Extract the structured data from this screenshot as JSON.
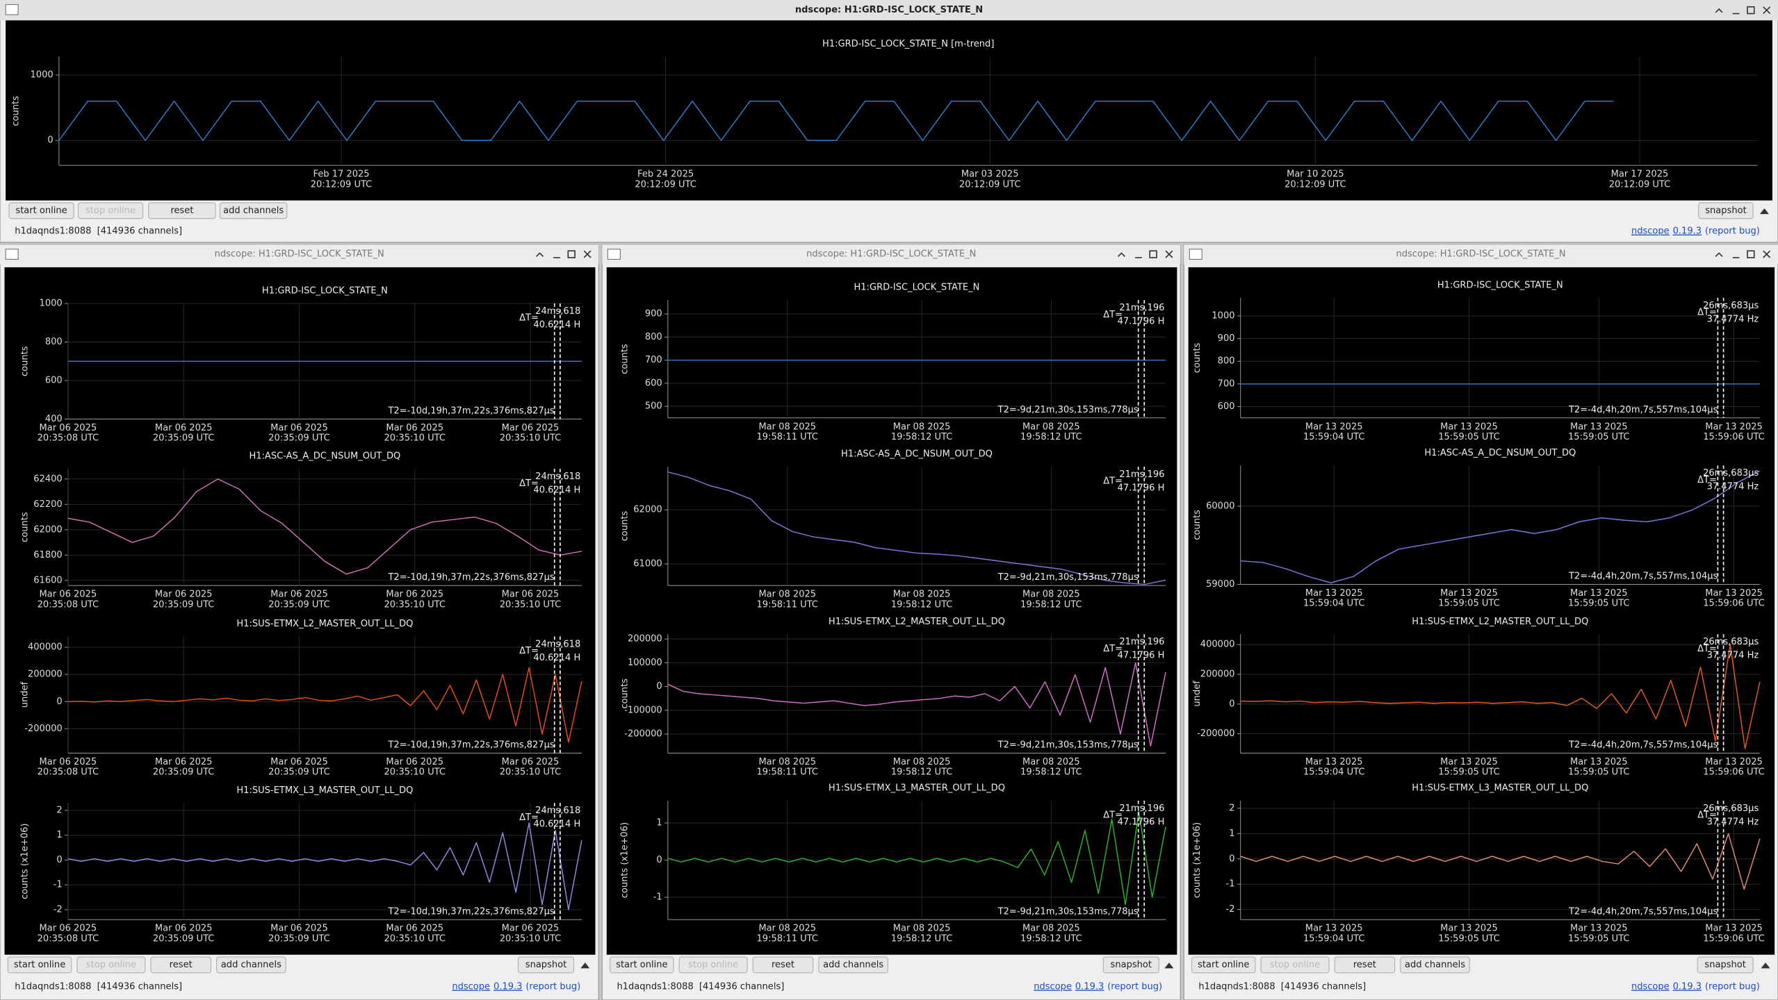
{
  "windows": [
    {
      "title": "ndscope: H1:GRD-ISC_LOCK_STATE_N",
      "plots": [
        {
          "title": "H1:GRD-ISC_LOCK_STATE_N [m-trend]",
          "ylabel": "counts",
          "ylim": [
            -380,
            1280
          ],
          "yticks": [
            0,
            1000
          ],
          "color": "#2f7fd0",
          "values": [
            0,
            600,
            600,
            0,
            600,
            0,
            600,
            600,
            0,
            600,
            0,
            600,
            600,
            600,
            0,
            0,
            600,
            0,
            600,
            600,
            600,
            0,
            600,
            0,
            600,
            600,
            0,
            0,
            600,
            600,
            0,
            600,
            600,
            0,
            600,
            0,
            600,
            600,
            600,
            0,
            600,
            0,
            600,
            600,
            0,
            600,
            600,
            0,
            600,
            0,
            600,
            600,
            0,
            600,
            600,
            null,
            null,
            null,
            null,
            null
          ]
        }
      ],
      "xticks": [
        {
          "date": "Feb 17 2025",
          "time": "20:12:09 UTC"
        },
        {
          "date": "Feb 24 2025",
          "time": "20:12:09 UTC"
        },
        {
          "date": "Mar 03 2025",
          "time": "20:12:09 UTC"
        },
        {
          "date": "Mar 10 2025",
          "time": "20:12:09 UTC"
        },
        {
          "date": "Mar 17 2025",
          "time": "20:12:09 UTC"
        }
      ],
      "buttons": [
        "start online",
        "stop online",
        "reset",
        "add channels",
        "snapshot"
      ],
      "status": {
        "server": "h1daqnds1:8088",
        "channels": "[414936 channels]",
        "app": "ndscope",
        "version": "0.19.3",
        "report": "(report bug)"
      }
    },
    {
      "title": "ndscope: H1:GRD-ISC_LOCK_STATE_N",
      "plots": [
        {
          "title": "H1:GRD-ISC_LOCK_STATE_N",
          "ylabel": "counts",
          "ylim": [
            400,
            1000
          ],
          "yticks": [
            400,
            600,
            800,
            1000
          ],
          "color": "#3a6fc4",
          "values": [
            700,
            700,
            700,
            700,
            700
          ]
        },
        {
          "title": "H1:ASC-AS_A_DC_NSUM_OUT_DQ",
          "ylabel": "counts",
          "ylim": [
            61560,
            62480
          ],
          "yticks": [
            61600,
            61800,
            62000,
            62200,
            62400
          ],
          "color": "#d070b0",
          "values": [
            62090,
            62060,
            61980,
            61900,
            61950,
            62100,
            62300,
            62400,
            62320,
            62150,
            62050,
            61900,
            61750,
            61650,
            61700,
            61850,
            62000,
            62060,
            62080,
            62100,
            62050,
            61950,
            61840,
            61800,
            61830
          ]
        },
        {
          "title": "H1:SUS-ETMX_L2_MASTER_OUT_LL_DQ",
          "ylabel": "undef",
          "ylim": [
            -380000,
            480000
          ],
          "yticks": [
            -200000,
            0,
            200000,
            400000
          ],
          "color": "#e0501a",
          "values": [
            0,
            2000,
            -3000,
            5000,
            0,
            8000,
            15000,
            5000,
            0,
            10000,
            20000,
            12000,
            25000,
            10000,
            5000,
            20000,
            8000,
            15000,
            30000,
            10000,
            5000,
            20000,
            40000,
            10000,
            30000,
            50000,
            -30000,
            80000,
            -60000,
            120000,
            -90000,
            160000,
            -130000,
            200000,
            -180000,
            250000,
            -240000,
            200000,
            -300000,
            150000
          ]
        },
        {
          "title": "H1:SUS-ETMX_L3_MASTER_OUT_LL_DQ",
          "ylabel": "counts (x1e+06)",
          "ylim": [
            -2.4,
            2.3
          ],
          "yticks": [
            -2,
            -1,
            0,
            1,
            2
          ],
          "color": "#8c8ce0",
          "values": [
            0.05,
            -0.05,
            0.05,
            -0.05,
            0.05,
            -0.05,
            0.05,
            -0.05,
            0.05,
            -0.05,
            0.05,
            -0.05,
            0.05,
            -0.05,
            0.05,
            -0.05,
            0.05,
            -0.05,
            0.05,
            -0.05,
            0.05,
            -0.05,
            0.05,
            -0.05,
            0.05,
            -0.05,
            -0.2,
            0.3,
            -0.4,
            0.5,
            -0.6,
            0.7,
            -0.9,
            1.1,
            -1.3,
            1.5,
            -1.8,
            1.2,
            -2.0,
            0.8
          ]
        }
      ],
      "xticks": [
        {
          "date": "Mar 06 2025",
          "time": "20:35:08 UTC"
        },
        {
          "date": "Mar 06 2025",
          "time": "20:35:09 UTC"
        },
        {
          "date": "Mar 06 2025",
          "time": "20:35:09 UTC"
        },
        {
          "date": "Mar 06 2025",
          "time": "20:35:10 UTC"
        },
        {
          "date": "Mar 06 2025",
          "time": "20:35:10 UTC"
        }
      ],
      "cursor": {
        "delta_label": "ΔT=",
        "delta_t": "24ms,618",
        "freq": "40.6214 H",
        "t2": "T2=-10d,19h,37m,22s,376ms,827µs"
      },
      "buttons": [
        "start online",
        "stop online",
        "reset",
        "add channels",
        "snapshot"
      ],
      "status": {
        "server": "h1daqnds1:8088",
        "channels": "[414936 channels]",
        "app": "ndscope",
        "version": "0.19.3",
        "report": "(report bug)"
      }
    },
    {
      "title": "ndscope: H1:GRD-ISC_LOCK_STATE_N",
      "plots": [
        {
          "title": "H1:GRD-ISC_LOCK_STATE_N",
          "ylabel": "counts",
          "ylim": [
            450,
            960
          ],
          "yticks": [
            500,
            600,
            700,
            800,
            900
          ],
          "color": "#3a6fc4",
          "values": [
            700,
            700,
            700,
            700,
            700
          ]
        },
        {
          "title": "H1:ASC-AS_A_DC_NSUM_OUT_DQ",
          "ylabel": "counts",
          "ylim": [
            60600,
            62800
          ],
          "yticks": [
            61000,
            62000
          ],
          "color": "#8a70d8",
          "values": [
            62700,
            62600,
            62450,
            62350,
            62200,
            61800,
            61600,
            61500,
            61450,
            61400,
            61300,
            61250,
            61200,
            61180,
            61150,
            61100,
            61050,
            61000,
            60950,
            60900,
            60800,
            60700,
            60650,
            60620,
            60700
          ]
        },
        {
          "title": "H1:SUS-ETMX_L2_MASTER_OUT_LL_DQ",
          "ylabel": "counts",
          "ylim": [
            -280000,
            220000
          ],
          "yticks": [
            -200000,
            -100000,
            0,
            100000,
            200000
          ],
          "color": "#d070c8",
          "values": [
            10000,
            -20000,
            -30000,
            -35000,
            -40000,
            -45000,
            -50000,
            -60000,
            -65000,
            -70000,
            -65000,
            -60000,
            -70000,
            -80000,
            -75000,
            -65000,
            -60000,
            -55000,
            -50000,
            -40000,
            -45000,
            -30000,
            -60000,
            0,
            -90000,
            20000,
            -120000,
            50000,
            -150000,
            80000,
            -200000,
            100000,
            -250000,
            60000
          ]
        },
        {
          "title": "H1:SUS-ETMX_L3_MASTER_OUT_LL_DQ",
          "ylabel": "counts (x1e+06)",
          "ylim": [
            -1.6,
            1.6
          ],
          "yticks": [
            -1,
            0,
            1
          ],
          "color": "#30b030",
          "values": [
            0.05,
            -0.05,
            0.05,
            -0.05,
            0.05,
            -0.05,
            0.05,
            -0.05,
            0.05,
            -0.05,
            0.05,
            -0.05,
            0.05,
            -0.05,
            0.05,
            -0.05,
            0.05,
            -0.05,
            0.05,
            -0.05,
            0.05,
            -0.05,
            0.05,
            -0.05,
            0.05,
            -0.05,
            -0.2,
            0.3,
            -0.4,
            0.5,
            -0.6,
            0.8,
            -0.9,
            1.1,
            -1.2,
            1.3,
            -1.0,
            0.9
          ]
        }
      ],
      "xticks": [
        {
          "date": "Mar 08 2025",
          "time": "19:58:11 UTC"
        },
        {
          "date": "Mar 08 2025",
          "time": "19:58:12 UTC"
        },
        {
          "date": "Mar 08 2025",
          "time": "19:58:12 UTC"
        }
      ],
      "cursor": {
        "delta_label": "ΔT=",
        "delta_t": "21ms,196",
        "freq": "47.1796 H",
        "t2": "T2=-9d,21m,30s,153ms,778µs"
      },
      "buttons": [
        "start online",
        "stop online",
        "reset",
        "add channels",
        "snapshot"
      ],
      "status": {
        "server": "h1daqnds1:8088",
        "channels": "[414936 channels]",
        "app": "ndscope",
        "version": "0.19.3",
        "report": "(report bug)"
      }
    },
    {
      "title": "ndscope: H1:GRD-ISC_LOCK_STATE_N",
      "plots": [
        {
          "title": "H1:GRD-ISC_LOCK_STATE_N",
          "ylabel": "counts",
          "ylim": [
            550,
            1080
          ],
          "yticks": [
            600,
            700,
            800,
            900,
            1000
          ],
          "color": "#3a6fc4",
          "values": [
            700,
            700,
            700,
            700,
            700
          ]
        },
        {
          "title": "H1:ASC-AS_A_DC_NSUM_OUT_DQ",
          "ylabel": "counts",
          "ylim": [
            59000,
            60520
          ],
          "yticks": [
            59000,
            60000
          ],
          "color": "#7878e0",
          "values": [
            59300,
            59280,
            59200,
            59100,
            59020,
            59100,
            59300,
            59450,
            59500,
            59550,
            59600,
            59650,
            59700,
            59650,
            59700,
            59800,
            59850,
            59820,
            59800,
            59850,
            59950,
            60100,
            60300,
            60450
          ]
        },
        {
          "title": "H1:SUS-ETMX_L2_MASTER_OUT_LL_DQ",
          "ylabel": "undef",
          "ylim": [
            -330000,
            470000
          ],
          "yticks": [
            -200000,
            0,
            200000,
            400000
          ],
          "color": "#e05a20",
          "values": [
            20000,
            18000,
            22000,
            15000,
            20000,
            10000,
            15000,
            12000,
            18000,
            10000,
            5000,
            8000,
            12000,
            5000,
            10000,
            8000,
            12000,
            5000,
            10000,
            15000,
            5000,
            10000,
            -10000,
            40000,
            -30000,
            70000,
            -60000,
            100000,
            -100000,
            160000,
            -150000,
            250000,
            -250000,
            400000,
            -300000,
            150000
          ]
        },
        {
          "title": "H1:SUS-ETMX_L3_MASTER_OUT_LL_DQ",
          "ylabel": "counts (x1e+06)",
          "ylim": [
            -2.4,
            2.3
          ],
          "yticks": [
            -2,
            -1,
            0,
            1,
            2
          ],
          "color": "#e08a78",
          "values": [
            0.1,
            -0.1,
            0.1,
            -0.1,
            0.1,
            -0.1,
            0.1,
            -0.1,
            0.1,
            -0.1,
            0.1,
            -0.1,
            0.1,
            -0.1,
            0.1,
            -0.1,
            0.1,
            -0.1,
            0.1,
            -0.1,
            0.1,
            -0.1,
            0.1,
            -0.1,
            -0.2,
            0.3,
            -0.3,
            0.4,
            -0.5,
            0.6,
            -0.8,
            1.0,
            -1.2,
            0.8
          ]
        }
      ],
      "xticks": [
        {
          "date": "Mar 13 2025",
          "time": "15:59:04 UTC"
        },
        {
          "date": "Mar 13 2025",
          "time": "15:59:05 UTC"
        },
        {
          "date": "Mar 13 2025",
          "time": "15:59:05 UTC"
        },
        {
          "date": "Mar 13 2025",
          "time": "15:59:06 UTC"
        }
      ],
      "cursor": {
        "delta_label": "ΔT=",
        "delta_t": "26ms,683µs",
        "freq": "37.4774 Hz",
        "t2": "T2=-4d,4h,20m,7s,557ms,104µs"
      },
      "buttons": [
        "start online",
        "stop online",
        "reset",
        "add channels",
        "snapshot"
      ],
      "status": {
        "server": "h1daqnds1:8088",
        "channels": "[414936 channels]",
        "app": "ndscope",
        "version": "0.19.3",
        "report": "(report bug)"
      }
    }
  ]
}
